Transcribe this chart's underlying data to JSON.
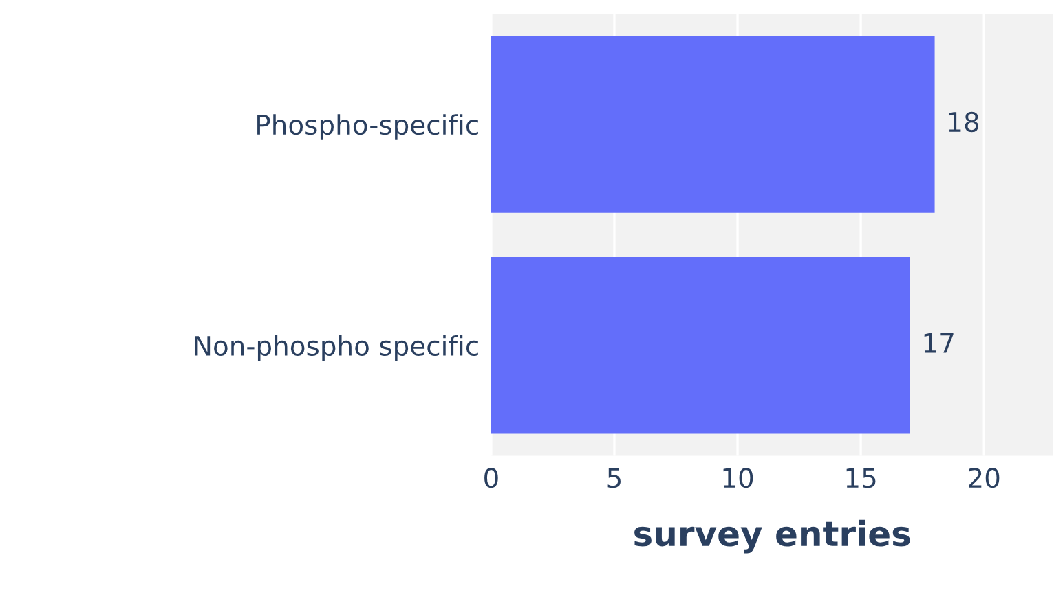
{
  "chart_data": {
    "type": "bar",
    "orientation": "horizontal",
    "categories": [
      "Phospho-specific",
      "Non-phospho specific"
    ],
    "values": [
      18,
      17
    ],
    "color": "#636efa",
    "xlabel": "survey entries",
    "xlim": [
      0,
      22.8
    ],
    "xticks": [
      0,
      5,
      10,
      15,
      20
    ],
    "grid": "x",
    "data_labels": true,
    "legend": false
  }
}
